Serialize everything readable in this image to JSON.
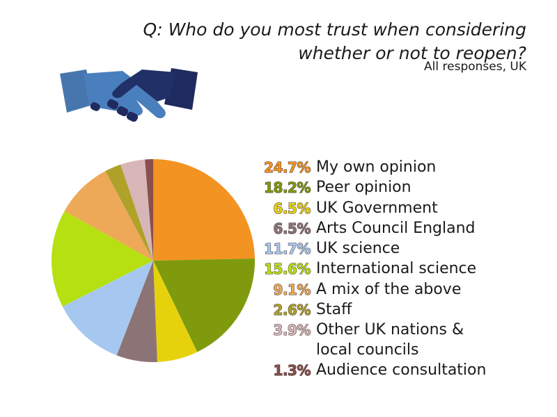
{
  "header": {
    "question": "Q: Who do you most trust when considering whether or not to reopen?",
    "subtitle": "All responses, UK"
  },
  "icon": "handshake-icon",
  "chart_data": {
    "type": "pie",
    "title": "Q: Who do you most trust when considering whether or not to reopen?",
    "subtitle": "All responses, UK",
    "legend_position": "right",
    "slices": [
      {
        "label": "My own opinion",
        "value": 24.7,
        "pct_label": "24.7%",
        "color": "#f39322"
      },
      {
        "label": "Peer opinion",
        "value": 18.2,
        "pct_label": "18.2%",
        "color": "#7f9b0d"
      },
      {
        "label": "UK Government",
        "value": 6.5,
        "pct_label": "6.5%",
        "color": "#e6d20c"
      },
      {
        "label": "Arts Council England",
        "value": 6.5,
        "pct_label": "6.5%",
        "color": "#8c7476"
      },
      {
        "label": "UK science",
        "value": 11.7,
        "pct_label": "11.7%",
        "color": "#a6c8f0"
      },
      {
        "label": "International science",
        "value": 15.6,
        "pct_label": "15.6%",
        "color": "#b6e012"
      },
      {
        "label": "A mix of the above",
        "value": 9.1,
        "pct_label": "9.1%",
        "color": "#eda957"
      },
      {
        "label": "Staff",
        "value": 2.6,
        "pct_label": "2.6%",
        "color": "#aea22a"
      },
      {
        "label": "Other UK nations & local councils",
        "value": 3.9,
        "pct_label": "3.9%",
        "color": "#d7b6b8"
      },
      {
        "label": "Audience consultation",
        "value": 1.3,
        "pct_label": "1.3%",
        "color": "#8a4f4c"
      }
    ]
  }
}
